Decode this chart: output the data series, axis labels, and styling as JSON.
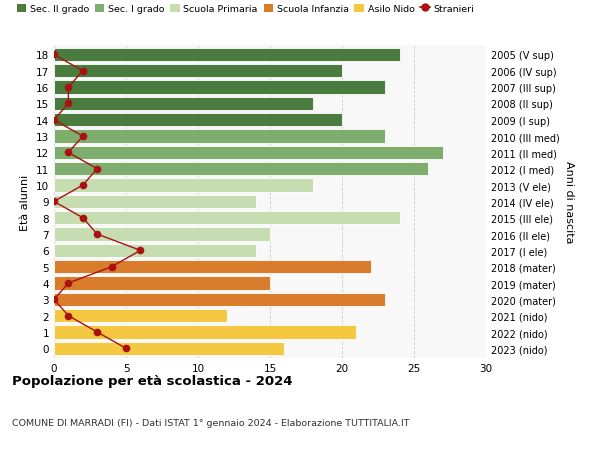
{
  "ages": [
    18,
    17,
    16,
    15,
    14,
    13,
    12,
    11,
    10,
    9,
    8,
    7,
    6,
    5,
    4,
    3,
    2,
    1,
    0
  ],
  "bar_values": [
    24,
    20,
    23,
    18,
    20,
    23,
    27,
    26,
    18,
    14,
    24,
    15,
    14,
    22,
    15,
    23,
    12,
    21,
    16
  ],
  "stranieri_values": [
    0,
    2,
    1,
    1,
    0,
    2,
    1,
    3,
    2,
    0,
    2,
    3,
    6,
    4,
    1,
    0,
    1,
    3,
    5
  ],
  "right_labels": [
    "2005 (V sup)",
    "2006 (IV sup)",
    "2007 (III sup)",
    "2008 (II sup)",
    "2009 (I sup)",
    "2010 (III med)",
    "2011 (II med)",
    "2012 (I med)",
    "2013 (V ele)",
    "2014 (IV ele)",
    "2015 (III ele)",
    "2016 (II ele)",
    "2017 (I ele)",
    "2018 (mater)",
    "2019 (mater)",
    "2020 (mater)",
    "2021 (nido)",
    "2022 (nido)",
    "2023 (nido)"
  ],
  "bar_colors": {
    "sec2": "#4a7c3f",
    "sec1": "#7fad6e",
    "primaria": "#c5ddb0",
    "infanzia": "#d97c2b",
    "nido": "#f5c842"
  },
  "age_school": {
    "sec2": [
      18,
      17,
      16,
      15,
      14
    ],
    "sec1": [
      13,
      12,
      11
    ],
    "primaria": [
      10,
      9,
      8,
      7,
      6
    ],
    "infanzia": [
      5,
      4,
      3
    ],
    "nido": [
      2,
      1,
      0
    ]
  },
  "stranieri_color": "#aa1111",
  "title": "Popolazione per età scolastica - 2024",
  "subtitle": "COMUNE DI MARRADI (FI) - Dati ISTAT 1° gennaio 2024 - Elaborazione TUTTITALIA.IT",
  "ylabel": "Età alunni",
  "right_ylabel": "Anni di nascita",
  "legend_labels": [
    "Sec. II grado",
    "Sec. I grado",
    "Scuola Primaria",
    "Scuola Infanzia",
    "Asilo Nido",
    "Stranieri"
  ],
  "xlim": [
    0,
    30
  ],
  "bg_color": "#ffffff",
  "plot_bg": "#f8f8f8",
  "grid_color": "#cccccc"
}
